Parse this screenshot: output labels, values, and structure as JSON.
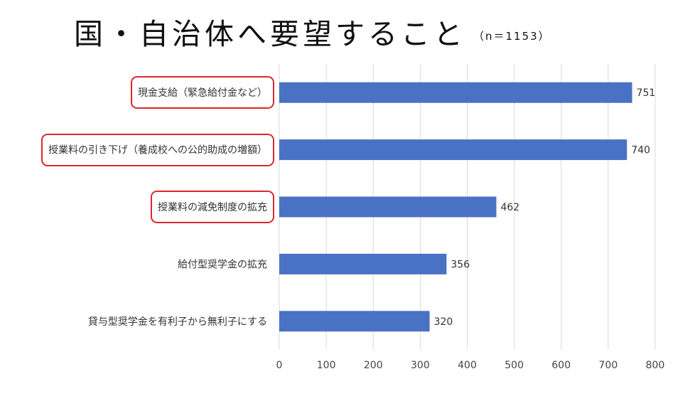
{
  "title": "国・自治体へ要望すること",
  "title_note": "（n＝1153）",
  "chart_data": {
    "type": "bar",
    "orientation": "horizontal",
    "categories": [
      "現金支給（緊急給付金など）",
      "授業料の引き下げ（養成校への公的助成の増額）",
      "授業料の減免制度の拡充",
      "給付型奨学金の拡充",
      "貸与型奨学金を有利子から無利子にする"
    ],
    "values": [
      751,
      740,
      462,
      356,
      320
    ],
    "xlim": [
      0,
      800
    ],
    "xticks": [
      0,
      100,
      200,
      300,
      400,
      500,
      600,
      700,
      800
    ],
    "grid": "vertical",
    "bar_color": "#4a72c4",
    "highlighted_categories": [
      0,
      1,
      2
    ],
    "highlight_color": "#d9282f"
  }
}
